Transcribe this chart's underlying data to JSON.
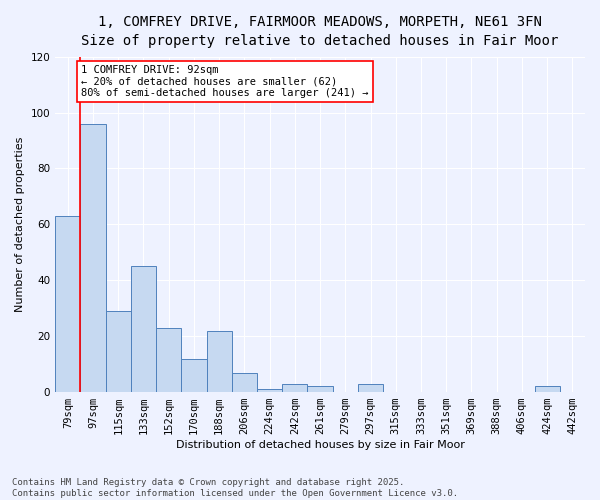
{
  "title_line1": "1, COMFREY DRIVE, FAIRMOOR MEADOWS, MORPETH, NE61 3FN",
  "title_line2": "Size of property relative to detached houses in Fair Moor",
  "xlabel": "Distribution of detached houses by size in Fair Moor",
  "ylabel": "Number of detached properties",
  "categories": [
    "79sqm",
    "97sqm",
    "115sqm",
    "133sqm",
    "152sqm",
    "170sqm",
    "188sqm",
    "206sqm",
    "224sqm",
    "242sqm",
    "261sqm",
    "279sqm",
    "297sqm",
    "315sqm",
    "333sqm",
    "351sqm",
    "369sqm",
    "388sqm",
    "406sqm",
    "424sqm",
    "442sqm"
  ],
  "values": [
    63,
    96,
    29,
    45,
    23,
    12,
    22,
    7,
    1,
    3,
    2,
    0,
    3,
    0,
    0,
    0,
    0,
    0,
    0,
    2,
    0
  ],
  "bar_color": "#c6d9f1",
  "bar_edge_color": "#4f81bd",
  "highlight_color": "#ff0000",
  "ylim": [
    0,
    120
  ],
  "yticks": [
    0,
    20,
    40,
    60,
    80,
    100,
    120
  ],
  "annotation_text": "1 COMFREY DRIVE: 92sqm\n← 20% of detached houses are smaller (62)\n80% of semi-detached houses are larger (241) →",
  "annotation_box_color": "#ff0000",
  "footnote": "Contains HM Land Registry data © Crown copyright and database right 2025.\nContains public sector information licensed under the Open Government Licence v3.0.",
  "background_color": "#eef2ff",
  "grid_color": "#ffffff",
  "title_fontsize": 10,
  "subtitle_fontsize": 9,
  "axis_label_fontsize": 8,
  "tick_fontsize": 7.5,
  "annotation_fontsize": 7.5,
  "footnote_fontsize": 6.5
}
